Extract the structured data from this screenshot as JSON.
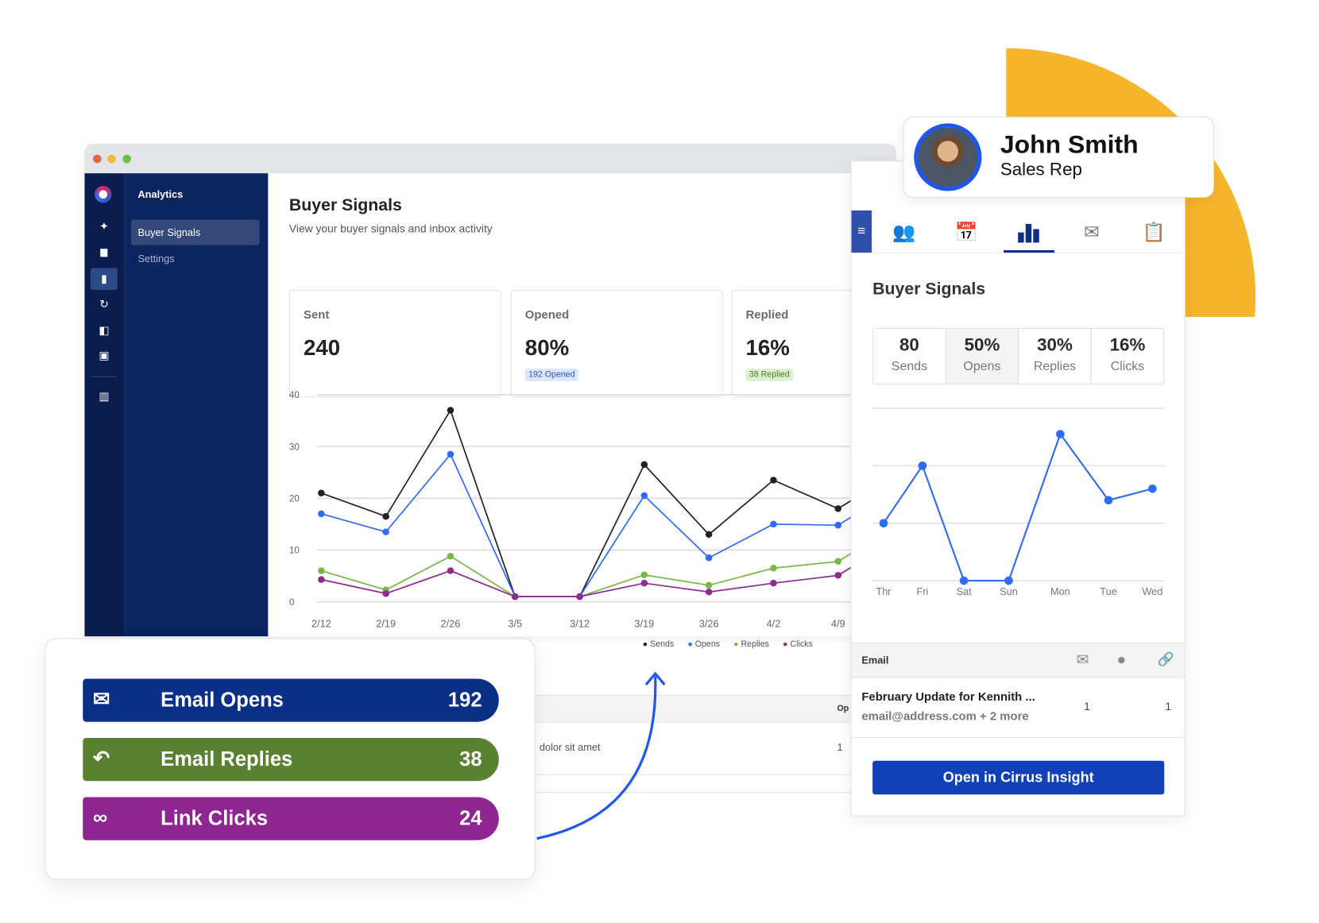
{
  "browser": {
    "sidebar_icons": [
      "logo-icon",
      "sparkle-icon",
      "calendar-icon",
      "bar-chart-icon",
      "sync-icon",
      "panel-icon",
      "code-icon",
      "building-icon"
    ],
    "nav_heading": "Analytics",
    "nav_items": [
      {
        "label": "Buyer Signals",
        "active": true
      },
      {
        "label": "Settings",
        "active": false
      }
    ],
    "page_title": "Buyer Signals",
    "page_subtitle": "View your buyer signals and inbox activity",
    "cards": [
      {
        "label": "Sent",
        "value": "240",
        "badge": ""
      },
      {
        "label": "Opened",
        "value": "80%",
        "badge": "192 Opened"
      },
      {
        "label": "Replied",
        "value": "16%",
        "badge": "38 Replied"
      }
    ],
    "table": {
      "header_partial": "Op",
      "row_text": "dolor sit amet",
      "row_value": "1"
    }
  },
  "chart_data": [
    {
      "type": "line",
      "x": [
        "2/12",
        "2/19",
        "2/26",
        "3/5",
        "3/12",
        "3/19",
        "3/26",
        "4/2",
        "4/9"
      ],
      "ylim": [
        0,
        40
      ],
      "yticks": [
        0,
        10,
        20,
        30,
        40
      ],
      "grid": true,
      "legend_placement": "bottom-right",
      "series": [
        {
          "name": "Sends",
          "color": "#222222",
          "values": [
            21,
            16.5,
            37,
            1,
            1,
            26.5,
            13,
            23.5,
            18
          ]
        },
        {
          "name": "Opens",
          "color": "#2F6BF5",
          "values": [
            17,
            13.5,
            28.5,
            1,
            1,
            20.5,
            8.5,
            15,
            14.8
          ]
        },
        {
          "name": "Replies",
          "color": "#78B843",
          "values": [
            6,
            2.3,
            8.8,
            1,
            1,
            5.2,
            3.2,
            6.5,
            7.8
          ]
        },
        {
          "name": "Clicks",
          "color": "#8E2A91",
          "values": [
            4.3,
            1.6,
            6,
            1,
            1,
            3.6,
            1.9,
            3.6,
            5.1
          ]
        }
      ]
    },
    {
      "type": "line",
      "x": [
        "Thr",
        "Fri",
        "Sat",
        "Sun",
        "Mon",
        "Tue",
        "Wed"
      ],
      "ylim": [
        0,
        3
      ],
      "grid": true,
      "series": [
        {
          "color": "#2F6BF5",
          "values": [
            1,
            2,
            0,
            0,
            2.55,
            1.4,
            1.6
          ]
        }
      ]
    }
  ],
  "profile": {
    "name": "John Smith",
    "role": "Sales Rep"
  },
  "panel": {
    "tabs": [
      "contacts-icon",
      "calendar-clock-icon",
      "bar-chart-icon",
      "email-send-icon",
      "clipboard-icon"
    ],
    "active_tab": 2,
    "title": "Buyer Signals",
    "stats": [
      {
        "value": "80",
        "label": "Sends"
      },
      {
        "value": "50%",
        "label": "Opens"
      },
      {
        "value": "30%",
        "label": "Replies"
      },
      {
        "value": "16%",
        "label": "Clicks"
      }
    ],
    "email_header": "Email",
    "email_subject": "February Update for Kennith ...",
    "email_recipients": "email@address.com + 2 more",
    "opens": "1",
    "clicks": "1",
    "button": "Open in Cirrus Insight"
  },
  "summary": [
    {
      "label": "Email Opens",
      "count": "192",
      "color": "#0B2E86",
      "icon": "envelope-open-icon"
    },
    {
      "label": "Email Replies",
      "count": "38",
      "color": "#5A8131",
      "icon": "reply-icon"
    },
    {
      "label": "Link Clicks",
      "count": "24",
      "color": "#8E2590",
      "icon": "link-icon"
    }
  ],
  "colors": {
    "accent": "#F7B52C",
    "primary": "#1240B8",
    "nav": "#0B2560"
  }
}
